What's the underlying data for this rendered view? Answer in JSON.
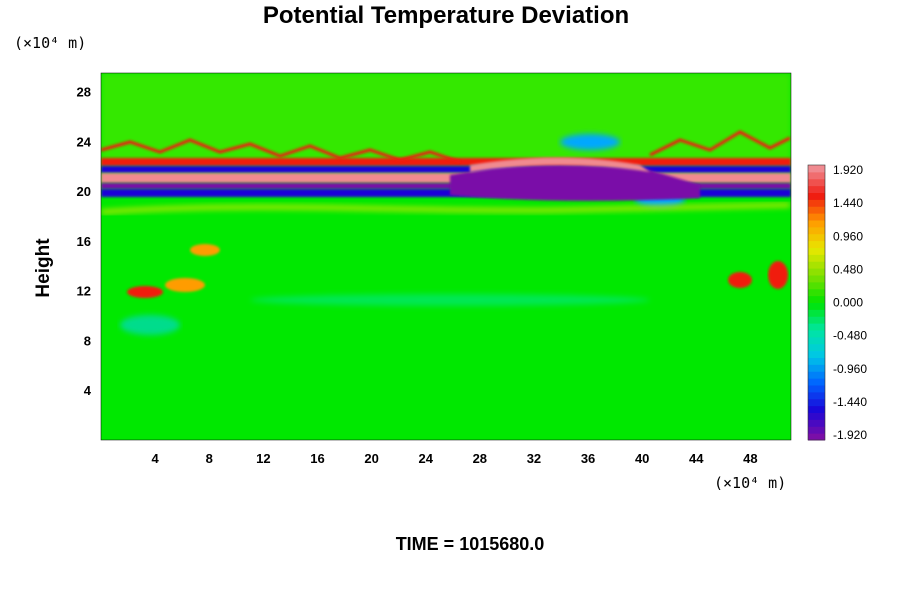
{
  "chart_data": {
    "type": "heatmap",
    "title": "Potential Temperature Deviation",
    "xlabel": "",
    "ylabel": "Height",
    "x_unit": "(×10⁴ m)",
    "y_unit": "(×10⁴ m)",
    "xlim": [
      0,
      51
    ],
    "ylim": [
      0,
      29.5
    ],
    "x_ticks": [
      "4",
      "8",
      "12",
      "16",
      "20",
      "24",
      "28",
      "32",
      "36",
      "40",
      "44",
      "48"
    ],
    "y_ticks": [
      "4",
      "8",
      "12",
      "16",
      "20",
      "24",
      "28"
    ],
    "colorbar": {
      "ticks": [
        "1.920",
        "1.440",
        "0.960",
        "0.480",
        "0.000",
        "-0.480",
        "-0.960",
        "-1.440",
        "-1.920"
      ],
      "range": [
        -1.92,
        1.92
      ],
      "colors": [
        "#7a0ea8",
        "#1a06d8",
        "#0063ff",
        "#00c6e8",
        "#00e6a0",
        "#00e400",
        "#7ee000",
        "#e8e800",
        "#ff9c00",
        "#f01a10",
        "#f08a90"
      ]
    },
    "features": [
      {
        "description_values": "strong alternating positive/negative deviation band",
        "y_center": 20.5,
        "x_range": [
          0,
          51
        ]
      },
      {
        "description_values": "wave-like oscillation zone",
        "y_range": [
          21,
          26
        ]
      },
      {
        "description_values": "positive warm patches",
        "y_center": 12,
        "x_range": [
          2,
          9
        ]
      }
    ]
  },
  "footer": {
    "time_label": "TIME = 1015680.0"
  }
}
